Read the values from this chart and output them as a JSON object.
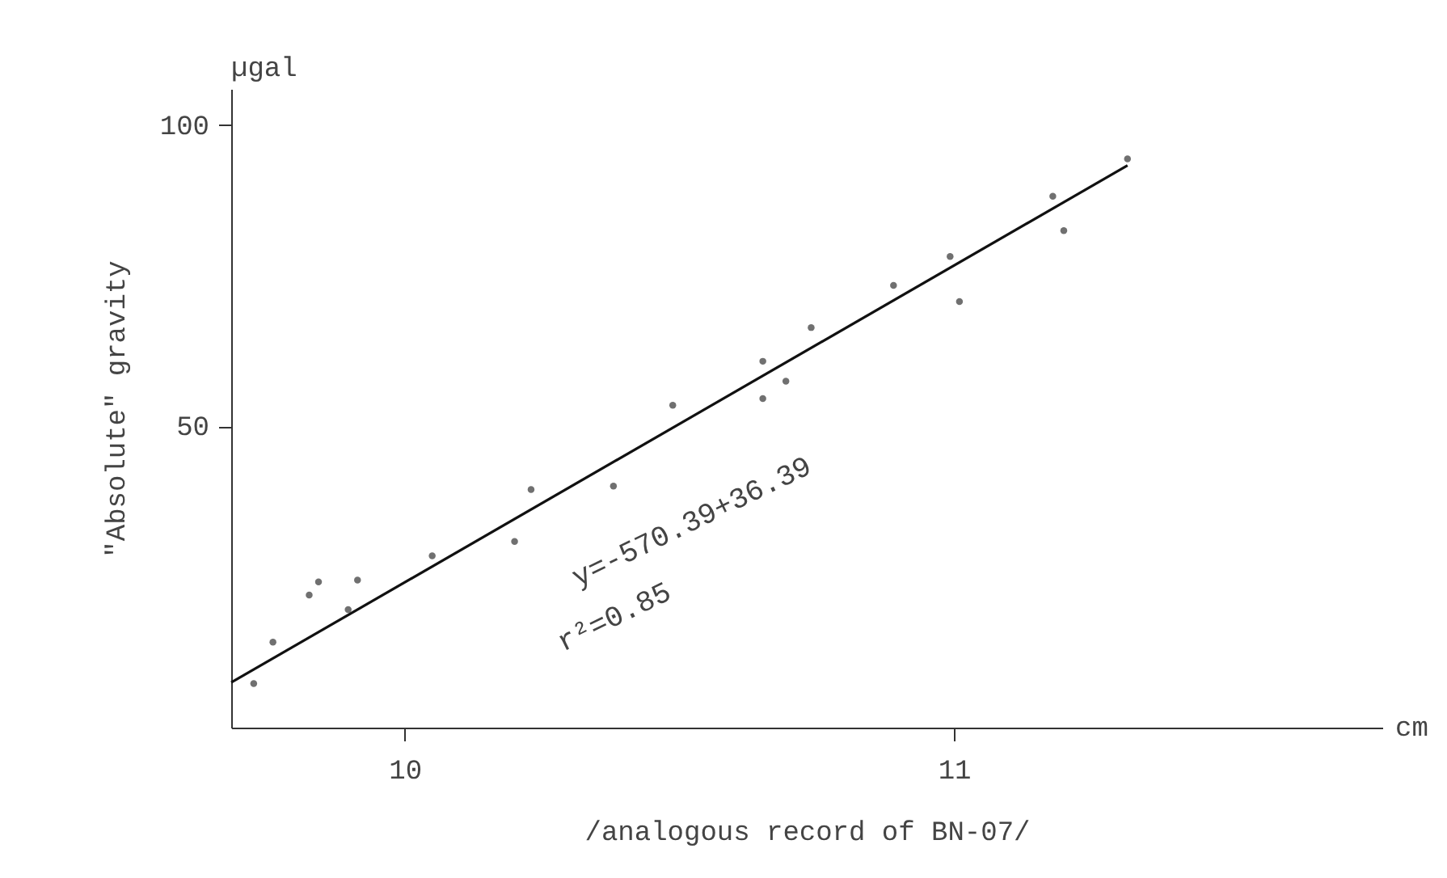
{
  "chart_data": {
    "type": "scatter",
    "xlabel": "/analogous record of BN-07/",
    "ylabel": "\"Absolute\" gravity",
    "xlim": [
      9.684,
      11.78
    ],
    "ylim": [
      0,
      106
    ],
    "xticks": [
      10,
      11
    ],
    "yticks": [
      50,
      100
    ],
    "grid": false,
    "series": [
      {
        "color": "#333333",
        "marker": "circle",
        "x": [
          9.725,
          9.76,
          9.826,
          9.843,
          9.897,
          9.914,
          10.05,
          10.2,
          10.23,
          10.38,
          10.488,
          10.652,
          10.652,
          10.694,
          10.74,
          10.89,
          10.993,
          11.01,
          11.18,
          11.2,
          11.316
        ],
        "values": [
          7.3,
          14.2,
          22.0,
          24.2,
          19.6,
          24.5,
          28.5,
          30.9,
          39.5,
          40.1,
          53.5,
          60.8,
          54.6,
          57.5,
          66.4,
          73.4,
          78.2,
          70.7,
          88.2,
          82.5,
          94.4
        ]
      },
      {
        "type": "line",
        "color": "#111111",
        "line_style": "solid",
        "x": [
          9.684,
          11.316
        ],
        "values": [
          7.5,
          93.3
        ]
      }
    ],
    "annotations": [
      "y=-570.39+36.39",
      "r²=0.85",
      "µgal",
      "cm"
    ]
  }
}
